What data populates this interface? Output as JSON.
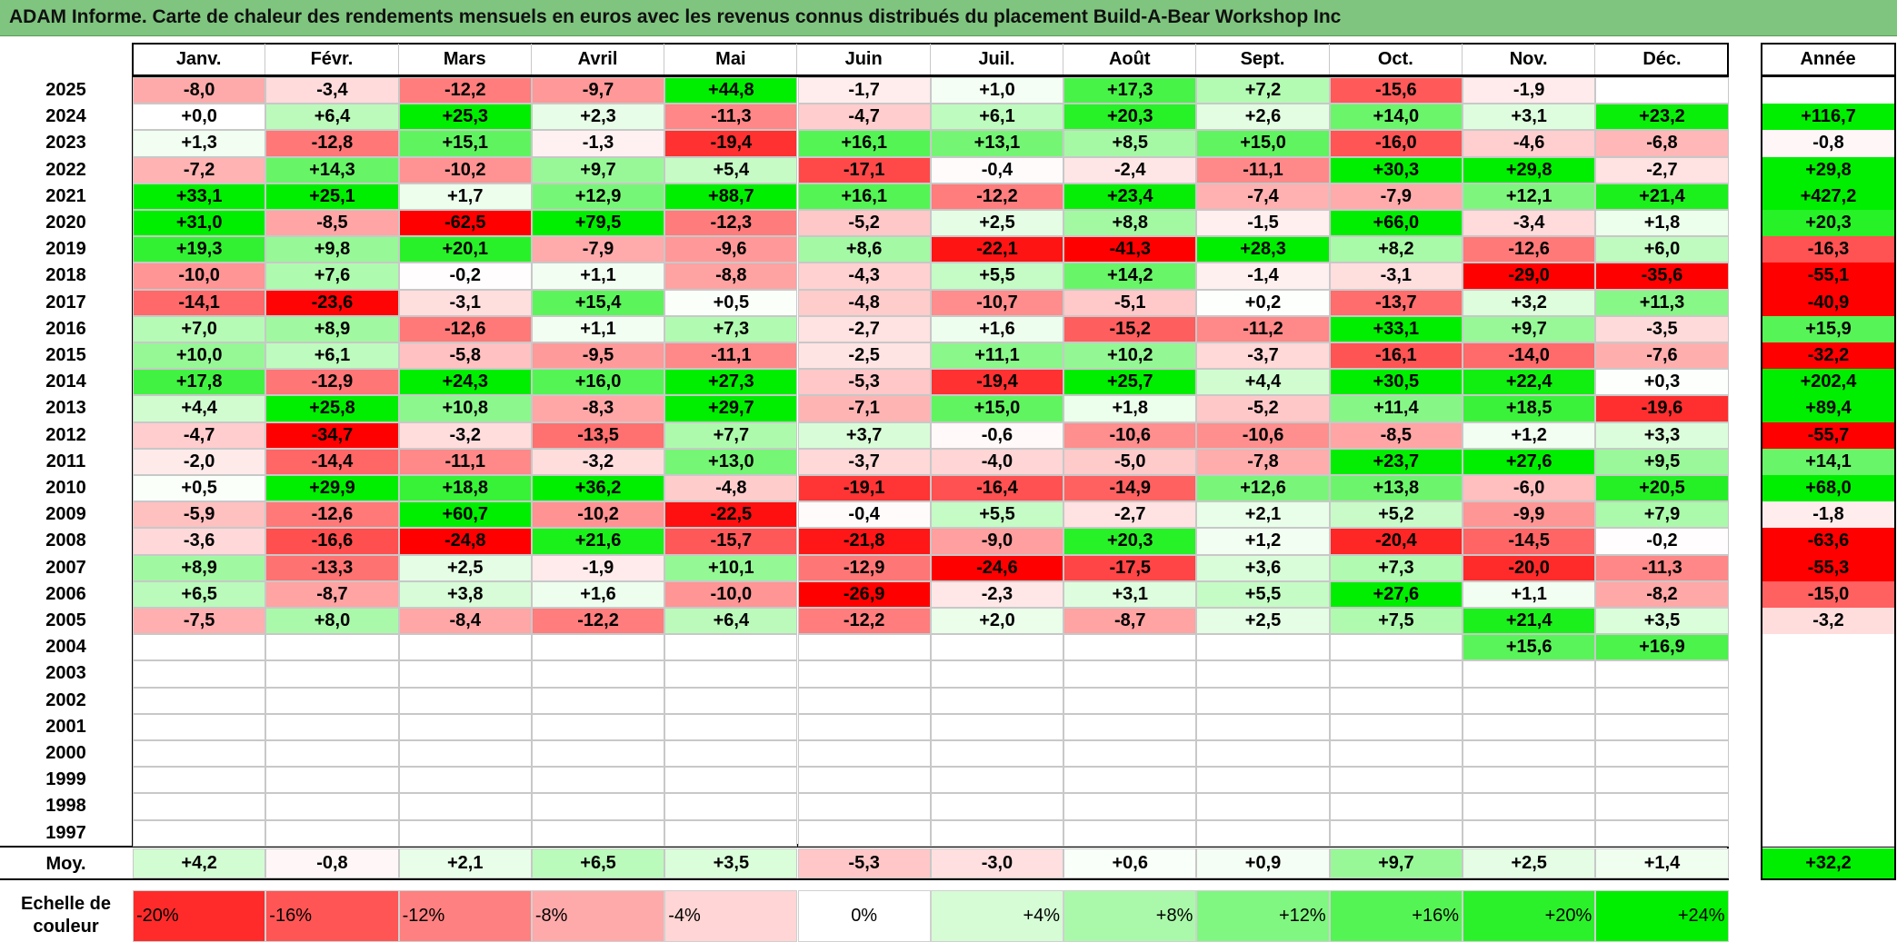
{
  "title": "ADAM Informe. Carte de chaleur des rendements mensuels en euros avec les revenus connus distribués du placement Build-A-Bear Workshop Inc",
  "annual_header": "Année",
  "moy_label": "Moy.",
  "scale_label": "Echelle de couleur",
  "chart_data": {
    "type": "heatmap",
    "title": "ADAM Informe. Carte de chaleur des rendements mensuels en euros avec les revenus connus distribués du placement Build-A-Bear Workshop Inc",
    "months": [
      "Janv.",
      "Févr.",
      "Mars",
      "Avril",
      "Mai",
      "Juin",
      "Juil.",
      "Août",
      "Sept.",
      "Oct.",
      "Nov.",
      "Déc."
    ],
    "rows": [
      {
        "year": "2025",
        "values": [
          "-8,0",
          "-3,4",
          "-12,2",
          "-9,7",
          "+44,8",
          "-1,7",
          "+1,0",
          "+17,3",
          "+7,2",
          "-15,6",
          "-1,9",
          ""
        ],
        "annual": ""
      },
      {
        "year": "2024",
        "values": [
          "+0,0",
          "+6,4",
          "+25,3",
          "+2,3",
          "-11,3",
          "-4,7",
          "+6,1",
          "+20,3",
          "+2,6",
          "+14,0",
          "+3,1",
          "+23,2"
        ],
        "annual": "+116,7"
      },
      {
        "year": "2023",
        "values": [
          "+1,3",
          "-12,8",
          "+15,1",
          "-1,3",
          "-19,4",
          "+16,1",
          "+13,1",
          "+8,5",
          "+15,0",
          "-16,0",
          "-4,6",
          "-6,8"
        ],
        "annual": "-0,8"
      },
      {
        "year": "2022",
        "values": [
          "-7,2",
          "+14,3",
          "-10,2",
          "+9,7",
          "+5,4",
          "-17,1",
          "-0,4",
          "-2,4",
          "-11,1",
          "+30,3",
          "+29,8",
          "-2,7"
        ],
        "annual": "+29,8"
      },
      {
        "year": "2021",
        "values": [
          "+33,1",
          "+25,1",
          "+1,7",
          "+12,9",
          "+88,7",
          "+16,1",
          "-12,2",
          "+23,4",
          "-7,4",
          "-7,9",
          "+12,1",
          "+21,4"
        ],
        "annual": "+427,2"
      },
      {
        "year": "2020",
        "values": [
          "+31,0",
          "-8,5",
          "-62,5",
          "+79,5",
          "-12,3",
          "-5,2",
          "+2,5",
          "+8,8",
          "-1,5",
          "+66,0",
          "-3,4",
          "+1,8"
        ],
        "annual": "+20,3"
      },
      {
        "year": "2019",
        "values": [
          "+19,3",
          "+9,8",
          "+20,1",
          "-7,9",
          "-9,6",
          "+8,6",
          "-22,1",
          "-41,3",
          "+28,3",
          "+8,2",
          "-12,6",
          "+6,0"
        ],
        "annual": "-16,3"
      },
      {
        "year": "2018",
        "values": [
          "-10,0",
          "+7,6",
          "-0,2",
          "+1,1",
          "-8,8",
          "-4,3",
          "+5,5",
          "+14,2",
          "-1,4",
          "-3,1",
          "-29,0",
          "-35,6"
        ],
        "annual": "-55,1"
      },
      {
        "year": "2017",
        "values": [
          "-14,1",
          "-23,6",
          "-3,1",
          "+15,4",
          "+0,5",
          "-4,8",
          "-10,7",
          "-5,1",
          "+0,2",
          "-13,7",
          "+3,2",
          "+11,3"
        ],
        "annual": "-40,9"
      },
      {
        "year": "2016",
        "values": [
          "+7,0",
          "+8,9",
          "-12,6",
          "+1,1",
          "+7,3",
          "-2,7",
          "+1,6",
          "-15,2",
          "-11,2",
          "+33,1",
          "+9,7",
          "-3,5"
        ],
        "annual": "+15,9"
      },
      {
        "year": "2015",
        "values": [
          "+10,0",
          "+6,1",
          "-5,8",
          "-9,5",
          "-11,1",
          "-2,5",
          "+11,1",
          "+10,2",
          "-3,7",
          "-16,1",
          "-14,0",
          "-7,6"
        ],
        "annual": "-32,2"
      },
      {
        "year": "2014",
        "values": [
          "+17,8",
          "-12,9",
          "+24,3",
          "+16,0",
          "+27,3",
          "-5,3",
          "-19,4",
          "+25,7",
          "+4,4",
          "+30,5",
          "+22,4",
          "+0,3"
        ],
        "annual": "+202,4"
      },
      {
        "year": "2013",
        "values": [
          "+4,4",
          "+25,8",
          "+10,8",
          "-8,3",
          "+29,7",
          "-7,1",
          "+15,0",
          "+1,8",
          "-5,2",
          "+11,4",
          "+18,5",
          "-19,6"
        ],
        "annual": "+89,4"
      },
      {
        "year": "2012",
        "values": [
          "-4,7",
          "-34,7",
          "-3,2",
          "-13,5",
          "+7,7",
          "+3,7",
          "-0,6",
          "-10,6",
          "-10,6",
          "-8,5",
          "+1,2",
          "+3,3"
        ],
        "annual": "-55,7"
      },
      {
        "year": "2011",
        "values": [
          "-2,0",
          "-14,4",
          "-11,1",
          "-3,2",
          "+13,0",
          "-3,7",
          "-4,0",
          "-5,0",
          "-7,8",
          "+23,7",
          "+27,6",
          "+9,5"
        ],
        "annual": "+14,1"
      },
      {
        "year": "2010",
        "values": [
          "+0,5",
          "+29,9",
          "+18,8",
          "+36,2",
          "-4,8",
          "-19,1",
          "-16,4",
          "-14,9",
          "+12,6",
          "+13,8",
          "-6,0",
          "+20,5"
        ],
        "annual": "+68,0"
      },
      {
        "year": "2009",
        "values": [
          "-5,9",
          "-12,6",
          "+60,7",
          "-10,2",
          "-22,5",
          "-0,4",
          "+5,5",
          "-2,7",
          "+2,1",
          "+5,2",
          "-9,9",
          "+7,9"
        ],
        "annual": "-1,8"
      },
      {
        "year": "2008",
        "values": [
          "-3,6",
          "-16,6",
          "-24,8",
          "+21,6",
          "-15,7",
          "-21,8",
          "-9,0",
          "+20,3",
          "+1,2",
          "-20,4",
          "-14,5",
          "-0,2"
        ],
        "annual": "-63,6"
      },
      {
        "year": "2007",
        "values": [
          "+8,9",
          "-13,3",
          "+2,5",
          "-1,9",
          "+10,1",
          "-12,9",
          "-24,6",
          "-17,5",
          "+3,6",
          "+7,3",
          "-20,0",
          "-11,3"
        ],
        "annual": "-55,3"
      },
      {
        "year": "2006",
        "values": [
          "+6,5",
          "-8,7",
          "+3,8",
          "+1,6",
          "-10,0",
          "-26,9",
          "-2,3",
          "+3,1",
          "+5,5",
          "+27,6",
          "+1,1",
          "-8,2"
        ],
        "annual": "-15,0"
      },
      {
        "year": "2005",
        "values": [
          "-7,5",
          "+8,0",
          "-8,4",
          "-12,2",
          "+6,4",
          "-12,2",
          "+2,0",
          "-8,7",
          "+2,5",
          "+7,5",
          "+21,4",
          "+3,5"
        ],
        "annual": "-3,2"
      },
      {
        "year": "2004",
        "values": [
          "",
          "",
          "",
          "",
          "",
          "",
          "",
          "",
          "",
          "",
          "+15,6",
          "+16,9"
        ],
        "annual": ""
      },
      {
        "year": "2003",
        "values": [
          "",
          "",
          "",
          "",
          "",
          "",
          "",
          "",
          "",
          "",
          "",
          ""
        ],
        "annual": ""
      },
      {
        "year": "2002",
        "values": [
          "",
          "",
          "",
          "",
          "",
          "",
          "",
          "",
          "",
          "",
          "",
          ""
        ],
        "annual": ""
      },
      {
        "year": "2001",
        "values": [
          "",
          "",
          "",
          "",
          "",
          "",
          "",
          "",
          "",
          "",
          "",
          ""
        ],
        "annual": ""
      },
      {
        "year": "2000",
        "values": [
          "",
          "",
          "",
          "",
          "",
          "",
          "",
          "",
          "",
          "",
          "",
          ""
        ],
        "annual": ""
      },
      {
        "year": "1999",
        "values": [
          "",
          "",
          "",
          "",
          "",
          "",
          "",
          "",
          "",
          "",
          "",
          ""
        ],
        "annual": ""
      },
      {
        "year": "1998",
        "values": [
          "",
          "",
          "",
          "",
          "",
          "",
          "",
          "",
          "",
          "",
          "",
          ""
        ],
        "annual": ""
      },
      {
        "year": "1997",
        "values": [
          "",
          "",
          "",
          "",
          "",
          "",
          "",
          "",
          "",
          "",
          "",
          ""
        ],
        "annual": ""
      }
    ],
    "averages": [
      "+4,2",
      "-0,8",
      "+2,1",
      "+6,5",
      "+3,5",
      "-5,3",
      "-3,0",
      "+0,6",
      "+0,9",
      "+9,7",
      "+2,5",
      "+1,4"
    ],
    "average_annual": "+32,2",
    "color_scale": [
      {
        "label": "-20%",
        "value": -20,
        "align": "left"
      },
      {
        "label": "-16%",
        "value": -16,
        "align": "left"
      },
      {
        "label": "-12%",
        "value": -12,
        "align": "left"
      },
      {
        "label": "-8%",
        "value": -8,
        "align": "left"
      },
      {
        "label": "-4%",
        "value": -4,
        "align": "left"
      },
      {
        "label": "0%",
        "value": 0,
        "align": "center"
      },
      {
        "label": "+4%",
        "value": 4,
        "align": "right"
      },
      {
        "label": "+8%",
        "value": 8,
        "align": "right"
      },
      {
        "label": "+12%",
        "value": 12,
        "align": "right"
      },
      {
        "label": "+16%",
        "value": 16,
        "align": "right"
      },
      {
        "label": "+20%",
        "value": 20,
        "align": "right"
      },
      {
        "label": "+24%",
        "value": 24,
        "align": "right"
      }
    ],
    "colors": {
      "negative": "#ff0000",
      "positive": "#00ee00",
      "neutral": "#ffffff",
      "title_bar": "#7fc57f"
    }
  }
}
